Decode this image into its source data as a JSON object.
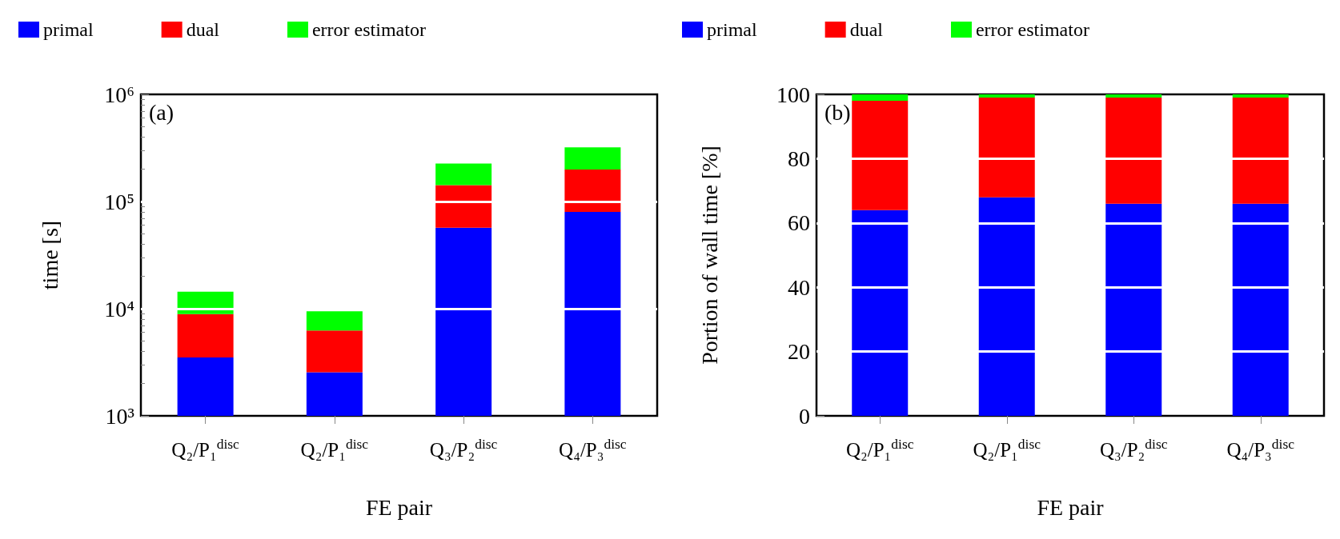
{
  "chart_data": [
    {
      "type": "bar",
      "stacked": true,
      "log": "y",
      "ylabel": "time [s]",
      "xlabel": "FE pair",
      "annotations": [
        "(a)"
      ],
      "legend": "top",
      "grid": "y",
      "categories": [
        "Q₂/P₁$^{disc}$",
        "Q₂/P₁$^{disc}$",
        "Q₃/P₂$^{disc}$",
        "Q₄/P₃$^{disc}$"
      ],
      "ylim": [
        1000,
        1000000
      ],
      "yticks": [
        {
          "value": 1000,
          "label": "10³"
        },
        {
          "value": 10000,
          "label": "10⁴"
        },
        {
          "value": 100000,
          "label": "10⁵"
        },
        {
          "value": 1000000,
          "label": "10⁶"
        }
      ],
      "series": [
        {
          "name": "primal",
          "color": "#0000ff",
          "values": [
            3500,
            2550,
            57000,
            80000
          ]
        },
        {
          "name": "dual",
          "color": "#ff0000",
          "values": [
            5400,
            3700,
            85000,
            119000
          ]
        },
        {
          "name": "error estimator",
          "color": "#00ff00",
          "values": [
            5500,
            3200,
            84000,
            122000
          ]
        }
      ]
    },
    {
      "type": "bar",
      "stacked": true,
      "ylabel": "Portion of wall time [%]",
      "xlabel": "FE pair",
      "annotations": [
        "(b)"
      ],
      "legend": "top",
      "grid": "y",
      "categories": [
        "Q₂/P₁$^{disc}$",
        "Q₂/P₁$^{disc}$",
        "Q₃/P₂$^{disc}$",
        "Q₄/P₃$^{disc}$"
      ],
      "ylim": [
        0,
        100
      ],
      "yticks": [
        0,
        20,
        40,
        60,
        80,
        100
      ],
      "series": [
        {
          "name": "primal",
          "color": "#0000ff",
          "values": [
            64,
            68,
            66,
            66
          ]
        },
        {
          "name": "dual",
          "color": "#ff0000",
          "values": [
            34,
            31,
            33,
            33
          ]
        },
        {
          "name": "error estimator",
          "color": "#00ff00",
          "values": [
            2,
            1,
            1,
            1
          ]
        }
      ]
    }
  ]
}
